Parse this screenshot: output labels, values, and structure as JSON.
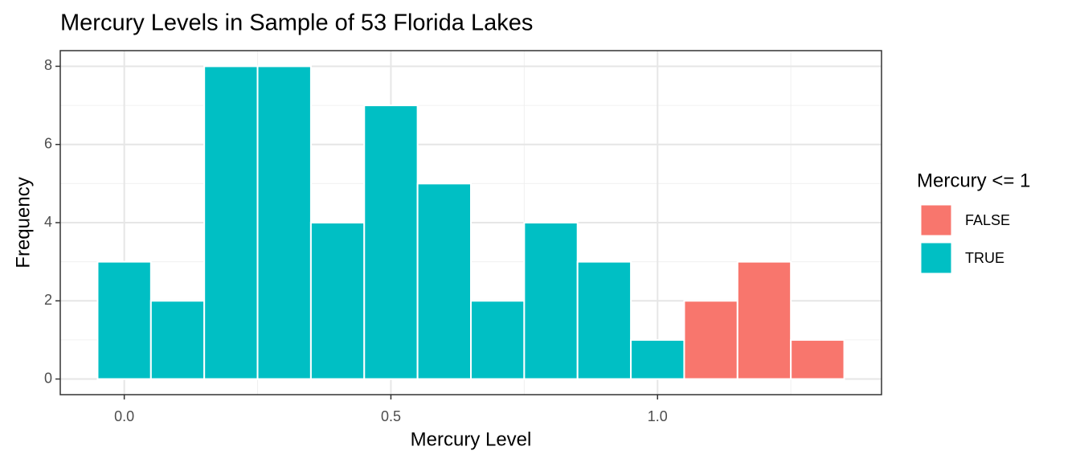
{
  "chart_data": {
    "type": "histogram",
    "title": "Mercury Levels in Sample of 53 Florida Lakes",
    "x_label": "Mercury Level",
    "y_label": "Frequency",
    "legend_title": "Mercury <= 1",
    "legend_position": "right",
    "bins": [
      -0.05,
      0.05,
      0.15,
      0.25,
      0.35,
      0.45,
      0.55,
      0.65,
      0.75,
      0.85,
      0.95,
      1.05,
      1.15,
      1.25,
      1.35
    ],
    "series": [
      {
        "name": "FALSE",
        "color": "#F8766D",
        "values": [
          0,
          0,
          0,
          0,
          0,
          0,
          0,
          0,
          0,
          0,
          0,
          2,
          3,
          1
        ]
      },
      {
        "name": "TRUE",
        "color": "#00BFC4",
        "values": [
          3,
          2,
          8,
          8,
          4,
          7,
          5,
          2,
          4,
          3,
          1,
          0,
          0,
          0
        ]
      }
    ],
    "xlim": [
      -0.12,
      1.42
    ],
    "ylim": [
      -0.4,
      8.4
    ],
    "xticks": [
      {
        "value": 0,
        "label": "0.0"
      },
      {
        "value": 0.5,
        "label": "0.5"
      },
      {
        "value": 1,
        "label": "1.0"
      }
    ],
    "yticks": [
      0,
      2,
      4,
      6,
      8
    ],
    "x_minor_ticks": [
      0.25,
      0.75,
      1.25
    ],
    "y_minor_ticks": [
      1,
      3,
      5,
      7
    ],
    "grid": true
  }
}
